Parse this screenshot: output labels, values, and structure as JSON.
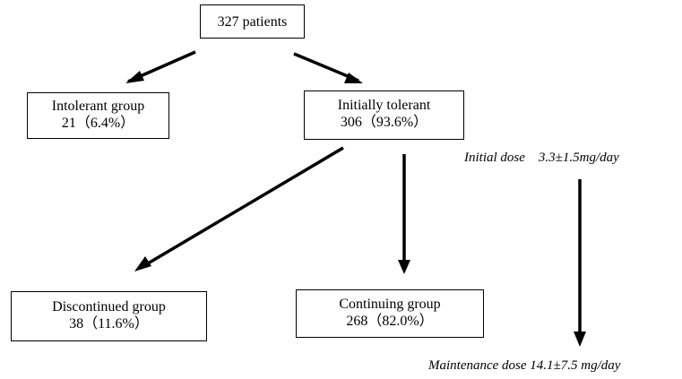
{
  "nodes": [
    {
      "lines": [
        "327 patients"
      ]
    },
    {
      "lines": [
        "Intolerant group",
        "21（6.4%）"
      ]
    },
    {
      "lines": [
        "Initially tolerant",
        "306（93.6%）"
      ]
    },
    {
      "lines": [
        "Discontinued group",
        "38（11.6%）"
      ]
    },
    {
      "lines": [
        "Continuing group",
        "268（82.0%）"
      ]
    }
  ],
  "annotations": [
    "Initial dose    3.3±1.5mg/day",
    "Maintenance dose 14.1±7.5 mg/day"
  ]
}
